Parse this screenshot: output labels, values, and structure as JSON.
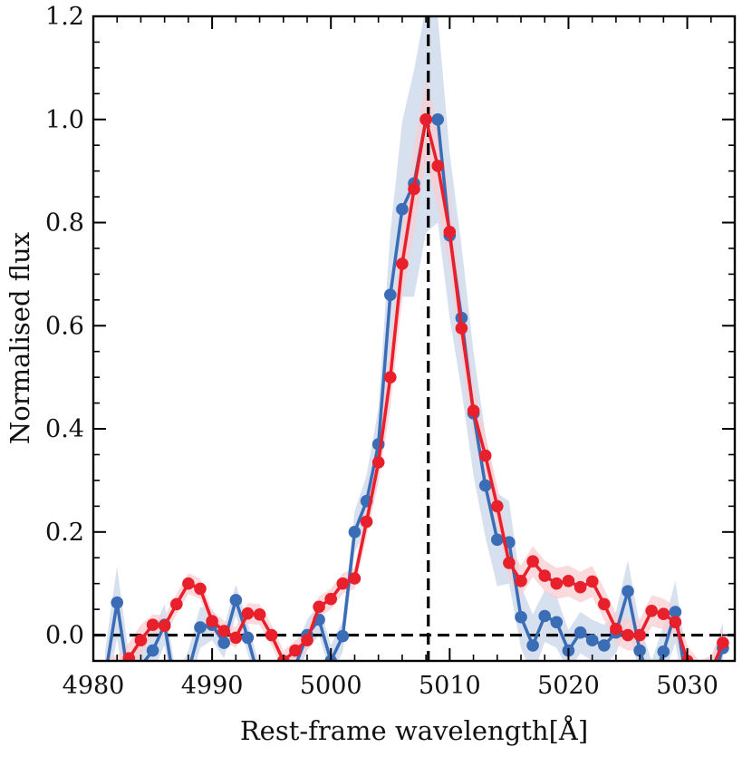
{
  "chart_data": {
    "type": "line",
    "title": "",
    "xlabel": "Rest-frame wavelength[Å]",
    "ylabel": "Normalised flux",
    "xlim": [
      4980,
      5034
    ],
    "ylim": [
      -0.05,
      1.2
    ],
    "x_ticks": [
      4980,
      4990,
      5000,
      5010,
      5020,
      5030
    ],
    "x_tick_labels": [
      "4980",
      "4990",
      "5000",
      "5010",
      "5020",
      "5030"
    ],
    "y_ticks": [
      0.0,
      0.2,
      0.4,
      0.6,
      0.8,
      1.0,
      1.2
    ],
    "y_tick_labels": [
      "0.0",
      "0.2",
      "0.4",
      "0.6",
      "0.8",
      "1.0",
      "1.2"
    ],
    "reference_lines": {
      "horizontal_y": 0.0,
      "vertical_x": 5008.2,
      "style": "dashed"
    },
    "grid": false,
    "series": [
      {
        "color": "#3a6db5",
        "band_color": "#c9d6e8",
        "x": [
          4981,
          4982,
          4983,
          4984,
          4985,
          4986,
          4987,
          4988,
          4989,
          4990,
          4991,
          4992,
          4993,
          4994,
          4995,
          4996,
          4997,
          4998,
          4999,
          5000,
          5001,
          5002,
          5003,
          5004,
          5005,
          5006,
          5007,
          5008,
          5009,
          5010,
          5011,
          5012,
          5013,
          5014,
          5015,
          5016,
          5017,
          5018,
          5019,
          5020,
          5021,
          5022,
          5023,
          5024,
          5025,
          5026,
          5027,
          5028,
          5029,
          5030,
          5031,
          5032,
          5033
        ],
        "y": [
          -0.08,
          0.063,
          -0.09,
          -0.06,
          -0.03,
          0.02,
          -0.12,
          -0.07,
          0.015,
          0.02,
          -0.015,
          0.068,
          -0.005,
          -0.09,
          -0.11,
          -0.1,
          -0.06,
          0.0,
          0.03,
          -0.05,
          -0.002,
          0.2,
          0.26,
          0.37,
          0.66,
          0.826,
          0.876,
          1.0,
          1.0,
          0.775,
          0.615,
          0.43,
          0.29,
          0.185,
          0.18,
          0.035,
          -0.02,
          0.037,
          0.025,
          -0.03,
          0.005,
          -0.01,
          -0.02,
          0.005,
          0.085,
          -0.03,
          -0.1,
          -0.032,
          0.045,
          -0.1,
          -0.1,
          -0.1,
          -0.025
        ],
        "err": [
          0.05,
          0.07,
          0.05,
          0.04,
          0.04,
          0.04,
          0.04,
          0.04,
          0.04,
          0.03,
          0.03,
          0.03,
          0.03,
          0.03,
          0.04,
          0.04,
          0.03,
          0.03,
          0.03,
          0.03,
          0.03,
          0.04,
          0.05,
          0.07,
          0.12,
          0.17,
          0.22,
          0.22,
          0.2,
          0.16,
          0.14,
          0.12,
          0.1,
          0.09,
          0.08,
          0.06,
          0.06,
          0.05,
          0.05,
          0.04,
          0.04,
          0.04,
          0.04,
          0.04,
          0.06,
          0.05,
          0.05,
          0.05,
          0.06,
          0.05,
          0.05,
          0.05,
          0.05
        ]
      },
      {
        "color": "#e8202b",
        "band_color": "#f8cdd0",
        "x": [
          4981,
          4982,
          4983,
          4984,
          4985,
          4986,
          4987,
          4988,
          4989,
          4990,
          4991,
          4992,
          4993,
          4994,
          4995,
          4996,
          4997,
          4998,
          4999,
          5000,
          5001,
          5002,
          5003,
          5004,
          5005,
          5006,
          5007,
          5008,
          5009,
          5010,
          5011,
          5012,
          5013,
          5014,
          5015,
          5016,
          5017,
          5018,
          5019,
          5020,
          5021,
          5022,
          5023,
          5024,
          5025,
          5026,
          5027,
          5028,
          5029,
          5030,
          5031,
          5032,
          5033
        ],
        "y": [
          -0.07,
          -0.07,
          -0.045,
          -0.01,
          0.02,
          0.018,
          0.06,
          0.1,
          0.09,
          0.027,
          0.008,
          -0.005,
          0.042,
          0.04,
          0.0,
          -0.05,
          -0.03,
          -0.01,
          0.055,
          0.07,
          0.1,
          0.11,
          0.22,
          0.335,
          0.5,
          0.72,
          0.865,
          1.0,
          0.91,
          0.782,
          0.595,
          0.435,
          0.348,
          0.25,
          0.14,
          0.105,
          0.143,
          0.115,
          0.1,
          0.105,
          0.093,
          0.104,
          0.06,
          0.012,
          0.0,
          0.0,
          0.047,
          0.041,
          0.025,
          -0.05,
          -0.08,
          -0.07,
          -0.015
        ],
        "err": [
          0.03,
          0.03,
          0.03,
          0.03,
          0.02,
          0.02,
          0.02,
          0.02,
          0.02,
          0.02,
          0.02,
          0.02,
          0.02,
          0.02,
          0.02,
          0.02,
          0.02,
          0.02,
          0.02,
          0.02,
          0.02,
          0.02,
          0.03,
          0.04,
          0.06,
          0.07,
          0.08,
          0.08,
          0.08,
          0.07,
          0.06,
          0.05,
          0.04,
          0.04,
          0.03,
          0.03,
          0.03,
          0.03,
          0.03,
          0.03,
          0.03,
          0.03,
          0.03,
          0.03,
          0.03,
          0.03,
          0.03,
          0.03,
          0.03,
          0.03,
          0.03,
          0.03,
          0.03
        ]
      }
    ]
  }
}
